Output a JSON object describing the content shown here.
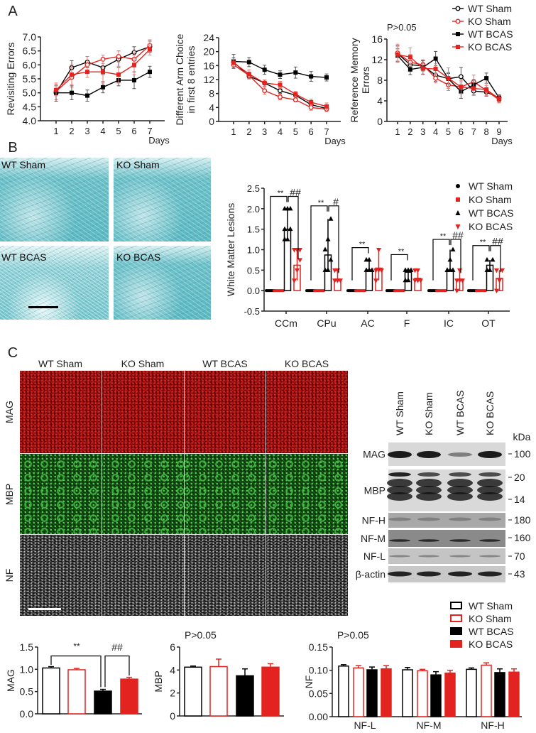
{
  "panel_labels": {
    "a": "A",
    "b": "B",
    "c": "C"
  },
  "colors": {
    "black": "#000000",
    "red": "#e3231f",
    "red_error": "#ec7a77",
    "teal_stain": "#5bb8c2",
    "mag_red": "#c01515",
    "mbp_green": "#3fb03f"
  },
  "groups": [
    "WT Sham",
    "KO Sham",
    "WT BCAS",
    "KO BCAS"
  ],
  "chart_data": [
    {
      "type": "line",
      "ylabel": "Revisiting Errors",
      "xlabel": "Days",
      "ylim": [
        4.0,
        7.0
      ],
      "yticks": [
        4.0,
        4.5,
        5.0,
        5.5,
        6.0,
        6.5,
        7.0
      ],
      "ytick_labels": [
        "4.0",
        "4.5",
        "5.0",
        "5.5",
        "6.0",
        "6.5",
        "7.0"
      ],
      "x": [
        1,
        2,
        3,
        4,
        5,
        6,
        7
      ],
      "series": [
        {
          "name": "WT Sham",
          "marker": "open-circle",
          "color": "#000000",
          "values": [
            5.0,
            5.9,
            6.1,
            5.9,
            6.2,
            6.45,
            6.65
          ],
          "error": [
            0.25,
            0.25,
            0.2,
            0.25,
            0.3,
            0.2,
            0.2
          ]
        },
        {
          "name": "KO Sham",
          "marker": "open-circle",
          "color": "#e3231f",
          "values": [
            5.05,
            5.55,
            6.0,
            6.2,
            6.3,
            6.2,
            6.7
          ],
          "error": [
            0.3,
            0.35,
            0.3,
            0.15,
            0.2,
            0.3,
            0.2
          ]
        },
        {
          "name": "WT BCAS",
          "marker": "square",
          "color": "#000000",
          "values": [
            5.0,
            5.0,
            4.9,
            5.2,
            5.45,
            5.45,
            5.75
          ],
          "error": [
            0.3,
            0.25,
            0.2,
            0.2,
            0.2,
            0.3,
            0.2
          ]
        },
        {
          "name": "KO BCAS",
          "marker": "square",
          "color": "#e3231f",
          "values": [
            5.1,
            5.65,
            5.75,
            5.75,
            5.65,
            6.0,
            6.55
          ],
          "error": [
            0.2,
            0.35,
            0.2,
            0.4,
            0.3,
            0.35,
            0.2
          ]
        }
      ]
    },
    {
      "type": "line",
      "ylabel_lines": [
        "Different Arm Choice",
        "in first 8 entries"
      ],
      "xlabel": "Days",
      "ylim": [
        0,
        24
      ],
      "yticks": [
        0,
        4,
        8,
        12,
        16,
        20,
        24
      ],
      "ytick_labels": [
        "0",
        "4",
        "8",
        "12",
        "16",
        "20",
        "24"
      ],
      "x": [
        1,
        2,
        3,
        4,
        5,
        6,
        7
      ],
      "series": [
        {
          "name": "WT Sham",
          "marker": "open-circle",
          "color": "#000000",
          "values": [
            17.0,
            13.0,
            11.0,
            8.8,
            7.5,
            4.8,
            3.7
          ],
          "error": [
            1.2,
            0.8,
            0.9,
            0.8,
            0.8,
            0.8,
            0.6
          ]
        },
        {
          "name": "KO Sham",
          "marker": "open-circle",
          "color": "#e3231f",
          "values": [
            16.2,
            13.2,
            8.8,
            7.0,
            6.2,
            4.0,
            3.5
          ],
          "error": [
            0.8,
            0.8,
            1.0,
            0.8,
            0.6,
            0.8,
            0.6
          ]
        },
        {
          "name": "WT BCAS",
          "marker": "square",
          "color": "#000000",
          "values": [
            17.2,
            17.0,
            14.8,
            13.4,
            14.0,
            12.9,
            12.6
          ],
          "error": [
            2.0,
            1.3,
            1.3,
            1.1,
            1.6,
            1.4,
            1.0
          ]
        },
        {
          "name": "KO BCAS",
          "marker": "square",
          "color": "#e3231f",
          "values": [
            16.8,
            13.6,
            11.0,
            10.5,
            7.8,
            5.5,
            4.3
          ],
          "error": [
            1.0,
            1.2,
            0.9,
            1.0,
            0.8,
            0.9,
            1.0
          ]
        }
      ]
    },
    {
      "type": "line",
      "ylabel_lines": [
        "Reference Memory",
        "Errors"
      ],
      "xlabel": "Days",
      "annotation": "P>0.05",
      "ylim": [
        0,
        16
      ],
      "yticks": [
        0,
        4,
        8,
        12,
        16
      ],
      "ytick_labels": [
        "0",
        "4",
        "8",
        "12",
        "16"
      ],
      "x": [
        1,
        2,
        3,
        4,
        5,
        6,
        7,
        8,
        9
      ],
      "legend": {
        "placement": "top-right",
        "entries": [
          "WT Sham",
          "KO Sham",
          "WT BCAS",
          "KO BCAS"
        ]
      },
      "series": [
        {
          "name": "WT Sham",
          "marker": "open-circle",
          "color": "#000000",
          "values": [
            13.2,
            11.0,
            10.8,
            9.0,
            8.3,
            8.7,
            5.9,
            5.7,
            4.6
          ],
          "error": [
            1.5,
            1.2,
            1.0,
            1.2,
            1.2,
            1.8,
            0.8,
            0.8,
            0.5
          ]
        },
        {
          "name": "KO Sham",
          "marker": "open-circle",
          "color": "#e3231f",
          "values": [
            13.3,
            11.5,
            11.0,
            8.4,
            7.1,
            6.7,
            7.7,
            6.0,
            4.2
          ],
          "error": [
            1.7,
            1.5,
            1.0,
            0.9,
            1.1,
            1.0,
            1.3,
            1.0,
            0.6
          ]
        },
        {
          "name": "WT BCAS",
          "marker": "square",
          "color": "#000000",
          "values": [
            12.8,
            10.1,
            10.5,
            12.2,
            8.3,
            5.8,
            7.1,
            8.4,
            4.6
          ],
          "error": [
            1.3,
            1.0,
            1.3,
            1.4,
            1.0,
            1.3,
            1.0,
            1.0,
            0.6
          ]
        },
        {
          "name": "KO BCAS",
          "marker": "square",
          "color": "#e3231f",
          "values": [
            13.0,
            12.5,
            10.3,
            10.2,
            8.4,
            6.7,
            6.4,
            6.2,
            4.4
          ],
          "error": [
            1.5,
            1.8,
            1.2,
            1.0,
            2.0,
            1.3,
            1.2,
            1.2,
            0.7
          ]
        }
      ]
    },
    {
      "type": "bar",
      "ylabel": "White Matter Lesions",
      "ylim": [
        -0.5,
        2.5
      ],
      "yticks": [
        -0.5,
        0.0,
        0.5,
        1.0,
        1.5,
        2.0,
        2.5
      ],
      "ytick_labels": [
        "-0.5",
        "0.0",
        "0.5",
        "1.0",
        "1.5",
        "2.0",
        "2.5"
      ],
      "categories": [
        "CCm",
        "CPu",
        "AC",
        "F",
        "IC",
        "OT"
      ],
      "legend": {
        "placement": "top-right",
        "entries": [
          {
            "name": "WT Sham",
            "marker": "circle",
            "color": "#000000"
          },
          {
            "name": "KO Sham",
            "marker": "square",
            "color": "#e3231f"
          },
          {
            "name": "WT BCAS",
            "marker": "triangle-up",
            "color": "#000000"
          },
          {
            "name": "KO BCAS",
            "marker": "triangle-down",
            "color": "#e3231f"
          }
        ]
      },
      "series": [
        {
          "name": "WT Sham",
          "values": [
            0,
            0,
            0,
            0,
            0,
            0
          ]
        },
        {
          "name": "KO Sham",
          "values": [
            0,
            0,
            0,
            0,
            0,
            0
          ]
        },
        {
          "name": "WT BCAS",
          "values": [
            1.5,
            0.87,
            0.5,
            0.45,
            0.5,
            0.62
          ],
          "points": [
            [
              1.25,
              1.25,
              1.5,
              1.5,
              2.0,
              2.0,
              2.0
            ],
            [
              0.5,
              0.5,
              0.75,
              1.0,
              1.25,
              1.75
            ],
            [
              0.5,
              0.5,
              0.5,
              0.75,
              0.75
            ],
            [
              0.25,
              0.25,
              0.5,
              0.5,
              0.5
            ],
            [
              0.5,
              0.5,
              0.5,
              0.5,
              0.75,
              1.0
            ],
            [
              0.5,
              0.5,
              0.75,
              0.75
            ]
          ]
        },
        {
          "name": "KO BCAS",
          "values": [
            0.62,
            0.28,
            0.55,
            0.3,
            0.28,
            0.3
          ],
          "points": [
            [
              0.25,
              0.5,
              0.75,
              1.0,
              1.0,
              1.0
            ],
            [
              0.25,
              0.25,
              0.25,
              0.5,
              0.5
            ],
            [
              0.25,
              0.5,
              0.5,
              0.5,
              1.0
            ],
            [
              0.25,
              0.25,
              0.25,
              0.5,
              0.5
            ],
            [
              0.0,
              0.25,
              0.25,
              0.25,
              0.5
            ],
            [
              0.0,
              0.25,
              0.5,
              0.5
            ]
          ]
        }
      ],
      "significance": [
        {
          "category": "CCm",
          "vs_sham": "**",
          "vs_wt_bcas": "##"
        },
        {
          "category": "CPu",
          "vs_sham": "**",
          "vs_wt_bcas": "#"
        },
        {
          "category": "AC",
          "vs_sham": "**",
          "vs_wt_bcas": ""
        },
        {
          "category": "F",
          "vs_sham": "**",
          "vs_wt_bcas": ""
        },
        {
          "category": "IC",
          "vs_sham": "**",
          "vs_wt_bcas": "##"
        },
        {
          "category": "OT",
          "vs_sham": "**",
          "vs_wt_bcas": "##"
        }
      ]
    },
    {
      "type": "bar",
      "ylabel": "MAG",
      "ylim": [
        0,
        1.5
      ],
      "yticks": [
        0,
        0.5,
        1.0,
        1.5
      ],
      "ytick_labels": [
        "0.0",
        "0.5",
        "1.0",
        "1.5"
      ],
      "categories": [
        "WT Sham",
        "KO Sham",
        "WT BCAS",
        "KO BCAS"
      ],
      "values": [
        1.03,
        0.99,
        0.51,
        0.78
      ],
      "error": [
        0.03,
        0.03,
        0.04,
        0.04
      ],
      "significance": {
        "wt_sham_vs_wt_bcas": "**",
        "wt_bcas_vs_ko_bcas": "##"
      }
    },
    {
      "type": "bar",
      "ylabel": "MBP",
      "annotation": "P>0.05",
      "ylim": [
        0,
        6
      ],
      "yticks": [
        0,
        2,
        4,
        6
      ],
      "ytick_labels": [
        "0",
        "2",
        "4",
        "6"
      ],
      "categories": [
        "WT Sham",
        "KO Sham",
        "WT BCAS",
        "KO BCAS"
      ],
      "values": [
        4.25,
        4.3,
        3.5,
        4.25
      ],
      "error": [
        0.1,
        0.65,
        0.6,
        0.3
      ]
    },
    {
      "type": "bar",
      "ylabel": "NF",
      "annotation": "P>0.05",
      "ylim": [
        0,
        0.15
      ],
      "yticks": [
        0,
        0.05,
        0.1,
        0.15
      ],
      "ytick_labels": [
        "0.00",
        "0.05",
        "0.10",
        "0.15"
      ],
      "categories": [
        "NF-L",
        "NF-M",
        "NF-H"
      ],
      "legend": {
        "placement": "top-right",
        "entries": [
          "WT Sham",
          "KO Sham",
          "WT BCAS",
          "KO BCAS"
        ]
      },
      "series": [
        {
          "name": "WT Sham",
          "values": [
            0.109,
            0.101,
            0.102
          ],
          "error": [
            0.003,
            0.005,
            0.003
          ]
        },
        {
          "name": "KO Sham",
          "values": [
            0.105,
            0.099,
            0.111
          ],
          "error": [
            0.005,
            0.003,
            0.005
          ]
        },
        {
          "name": "WT BCAS",
          "values": [
            0.101,
            0.09,
            0.095
          ],
          "error": [
            0.006,
            0.007,
            0.008
          ]
        },
        {
          "name": "KO BCAS",
          "values": [
            0.103,
            0.094,
            0.096
          ],
          "error": [
            0.007,
            0.006,
            0.007
          ]
        }
      ]
    }
  ],
  "histology_b": {
    "labels": [
      "WT Sham",
      "KO Sham",
      "WT BCAS",
      "KO BCAS"
    ],
    "stain": "teal"
  },
  "panel_c": {
    "column_labels": [
      "WT Sham",
      "KO Sham",
      "WT BCAS",
      "KO BCAS"
    ],
    "row_labels": [
      "MAG",
      "MBP",
      "NF"
    ],
    "blot": {
      "lane_labels": [
        "WT Sham",
        "KO Sham",
        "WT BCAS",
        "KO BCAS"
      ],
      "unit": "kDa",
      "rows": [
        {
          "label": "MAG",
          "markers": [
            "100"
          ]
        },
        {
          "label": "MBP",
          "markers": [
            "20",
            "14"
          ]
        },
        {
          "label": "NF-H",
          "markers": [
            "180"
          ]
        },
        {
          "label": "NF-M",
          "markers": [
            "160"
          ]
        },
        {
          "label": "NF-L",
          "markers": [
            "70"
          ]
        },
        {
          "label": "β-actin",
          "markers": [
            "43"
          ]
        }
      ]
    }
  }
}
